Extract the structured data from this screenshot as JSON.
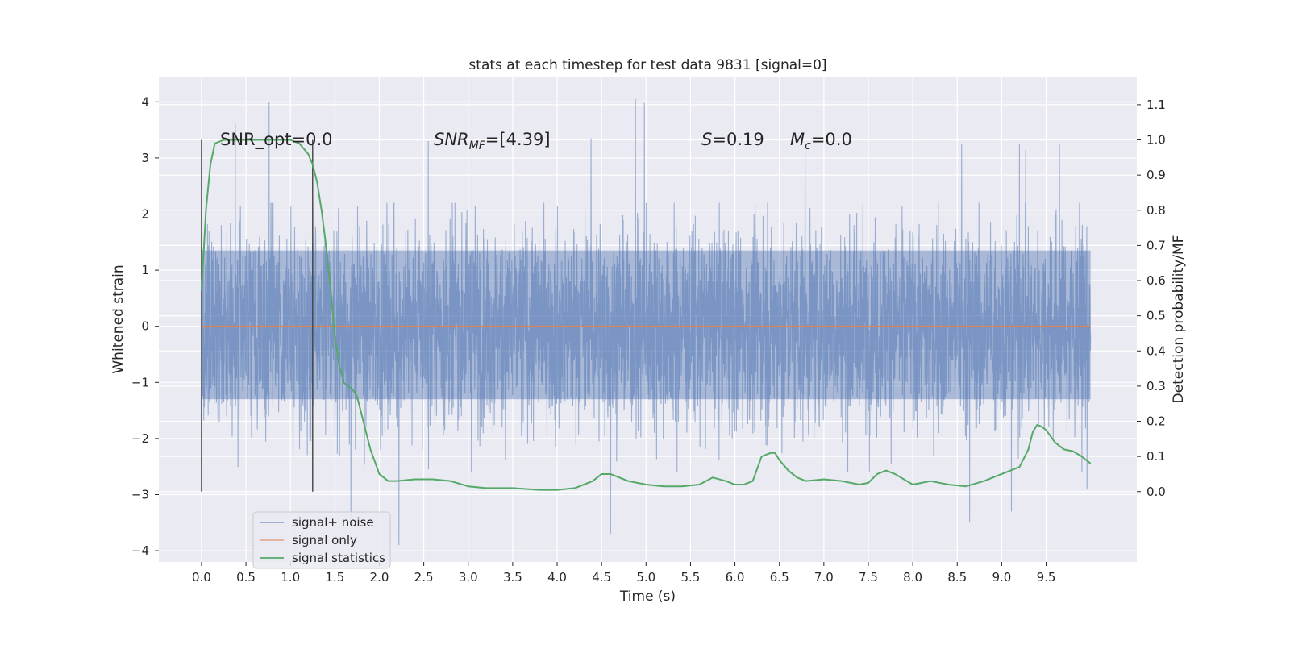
{
  "chart_data": {
    "type": "line",
    "title": "stats at each timestep for test data 9831 [signal=0]",
    "xlabel": "Time (s)",
    "ylabel_left": "Whitened strain",
    "ylabel_right": "Detection probability/MF",
    "xlim": [
      -0.48,
      10.52
    ],
    "ylim_left": [
      -4.2,
      4.45
    ],
    "ylim_right": [
      -0.2,
      1.18
    ],
    "x_ticks": [
      "0.0",
      "0.5",
      "1.0",
      "1.5",
      "2.0",
      "2.5",
      "3.0",
      "3.5",
      "4.0",
      "4.5",
      "5.0",
      "5.5",
      "6.0",
      "6.5",
      "7.0",
      "7.5",
      "8.0",
      "8.5",
      "9.0",
      "9.5"
    ],
    "y_ticks_left": [
      "4",
      "3",
      "2",
      "1",
      "0",
      "−1",
      "−2",
      "−3",
      "−4"
    ],
    "y_ticks_right": [
      "1.1",
      "1.0",
      "0.9",
      "0.8",
      "0.7",
      "0.6",
      "0.5",
      "0.4",
      "0.3",
      "0.2",
      "0.1",
      "0.0"
    ],
    "grid": true,
    "legend_position": "lower-left",
    "annotations": {
      "snr_opt": "SNR_opt=0.0",
      "snr_mf_base": "SNR",
      "snr_mf_sub": "MF",
      "snr_mf_value": "=[4.39]",
      "s_symbol": "S",
      "s_value": "=0.19",
      "mc_symbol": "M",
      "mc_sub": "c",
      "mc_value": "=0.0"
    },
    "vertical_markers": [
      0.0,
      1.25
    ],
    "series": [
      {
        "name": "signal+ noise",
        "color": "#4c72b0",
        "kind": "noise",
        "x_range": [
          0.0,
          10.0
        ],
        "core_band": [
          -1.3,
          1.35
        ],
        "typical_peak": 2.0,
        "max": 4.05,
        "min": -3.9,
        "notable_peaks": [
          [
            0.38,
            3.6
          ],
          [
            0.76,
            4.0
          ],
          [
            2.55,
            3.3
          ],
          [
            4.38,
            3.35
          ],
          [
            4.88,
            4.05
          ],
          [
            4.98,
            3.98
          ],
          [
            6.79,
            3.12
          ],
          [
            8.55,
            3.25
          ],
          [
            9.2,
            3.25
          ],
          [
            9.27,
            3.15
          ],
          [
            9.65,
            3.25
          ]
        ],
        "notable_troughs": [
          [
            1.68,
            -3.4
          ],
          [
            2.22,
            -3.9
          ],
          [
            4.6,
            -3.7
          ],
          [
            8.64,
            -3.5
          ],
          [
            9.11,
            -3.3
          ],
          [
            9.96,
            -2.9
          ]
        ]
      },
      {
        "name": "signal only",
        "color": "#dd8452",
        "kind": "line",
        "x": [
          0.0,
          10.0
        ],
        "y": [
          0.0,
          0.0
        ]
      },
      {
        "name": "signal statistics",
        "color": "#55a868",
        "kind": "line",
        "axis": "right",
        "x": [
          0.0,
          0.05,
          0.1,
          0.15,
          0.25,
          0.4,
          0.6,
          0.8,
          1.0,
          1.1,
          1.2,
          1.25,
          1.3,
          1.35,
          1.4,
          1.45,
          1.5,
          1.55,
          1.6,
          1.65,
          1.7,
          1.75,
          1.8,
          1.9,
          2.0,
          2.1,
          2.2,
          2.4,
          2.6,
          2.8,
          3.0,
          3.2,
          3.5,
          3.8,
          4.0,
          4.2,
          4.4,
          4.5,
          4.6,
          4.7,
          4.8,
          5.0,
          5.2,
          5.4,
          5.6,
          5.75,
          5.9,
          6.0,
          6.1,
          6.2,
          6.3,
          6.4,
          6.45,
          6.5,
          6.6,
          6.7,
          6.8,
          7.0,
          7.2,
          7.4,
          7.5,
          7.6,
          7.7,
          7.8,
          8.0,
          8.2,
          8.4,
          8.6,
          8.8,
          9.0,
          9.2,
          9.3,
          9.35,
          9.4,
          9.45,
          9.5,
          9.6,
          9.7,
          9.8,
          9.9,
          10.0
        ],
        "y": [
          0.57,
          0.8,
          0.93,
          0.99,
          1.0,
          1.0,
          1.0,
          1.0,
          1.0,
          0.99,
          0.96,
          0.93,
          0.88,
          0.8,
          0.7,
          0.58,
          0.44,
          0.36,
          0.31,
          0.3,
          0.29,
          0.27,
          0.22,
          0.12,
          0.05,
          0.03,
          0.03,
          0.035,
          0.035,
          0.03,
          0.015,
          0.01,
          0.01,
          0.005,
          0.005,
          0.01,
          0.03,
          0.05,
          0.05,
          0.04,
          0.03,
          0.02,
          0.015,
          0.015,
          0.02,
          0.04,
          0.03,
          0.02,
          0.02,
          0.03,
          0.1,
          0.11,
          0.11,
          0.09,
          0.06,
          0.04,
          0.03,
          0.035,
          0.03,
          0.02,
          0.025,
          0.05,
          0.06,
          0.05,
          0.02,
          0.03,
          0.02,
          0.015,
          0.03,
          0.05,
          0.07,
          0.12,
          0.17,
          0.19,
          0.185,
          0.175,
          0.14,
          0.12,
          0.115,
          0.1,
          0.08
        ]
      }
    ]
  }
}
